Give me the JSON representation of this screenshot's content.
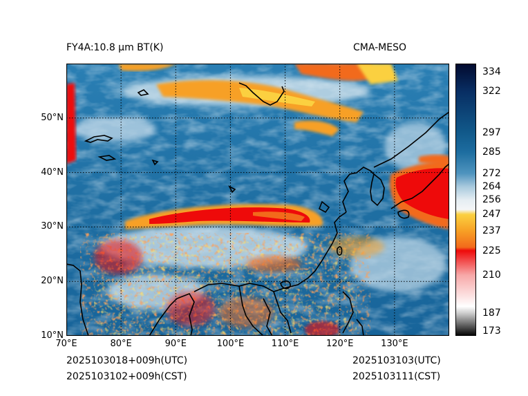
{
  "header": {
    "product": "FY4A:10.8 µm BT(K)",
    "source": "CMA-MESO"
  },
  "footer": {
    "init_utc": "2025103018+009h(UTC)",
    "init_cst": "2025103102+009h(CST)",
    "valid_utc": "2025103103(UTC)",
    "valid_cst": "2025103111(CST)"
  },
  "map": {
    "lon_range": [
      70,
      140
    ],
    "lat_range": [
      10,
      60
    ],
    "lon_ticks": [
      {
        "value": 70,
        "label": "70°E"
      },
      {
        "value": 80,
        "label": "80°E"
      },
      {
        "value": 90,
        "label": "90°E"
      },
      {
        "value": 100,
        "label": "100°E"
      },
      {
        "value": 110,
        "label": "110°E"
      },
      {
        "value": 120,
        "label": "120°E"
      },
      {
        "value": 130,
        "label": "130°E"
      }
    ],
    "lat_ticks": [
      {
        "value": 10,
        "label": "10°N"
      },
      {
        "value": 20,
        "label": "20°N"
      },
      {
        "value": 30,
        "label": "30°N"
      },
      {
        "value": 40,
        "label": "40°N"
      },
      {
        "value": 50,
        "label": "50°N"
      }
    ],
    "gridline_style": "dotted",
    "coastline_color": "#000000",
    "background_color": "#1f6fa3"
  },
  "colorbar": {
    "range": [
      173,
      339
    ],
    "ticks": [
      334,
      322,
      297,
      285,
      272,
      264,
      256,
      247,
      237,
      225,
      210,
      187,
      173
    ],
    "stops": [
      {
        "value": 173,
        "color": "#000000"
      },
      {
        "value": 187,
        "color": "#cfcfcf"
      },
      {
        "value": 191,
        "color": "#ffffff"
      },
      {
        "value": 210,
        "color": "#f7a8a8"
      },
      {
        "value": 225,
        "color": "#ee0a0a"
      },
      {
        "value": 227,
        "color": "#f26a1b"
      },
      {
        "value": 237,
        "color": "#f7a025"
      },
      {
        "value": 247,
        "color": "#fbd040"
      },
      {
        "value": 250,
        "color": "#f4f6f7"
      },
      {
        "value": 256,
        "color": "#e4edf2"
      },
      {
        "value": 264,
        "color": "#a8c9dd"
      },
      {
        "value": 272,
        "color": "#4f94be"
      },
      {
        "value": 285,
        "color": "#1d6da0"
      },
      {
        "value": 297,
        "color": "#11598a"
      },
      {
        "value": 322,
        "color": "#082e63"
      },
      {
        "value": 339,
        "color": "#020a2e"
      }
    ]
  }
}
